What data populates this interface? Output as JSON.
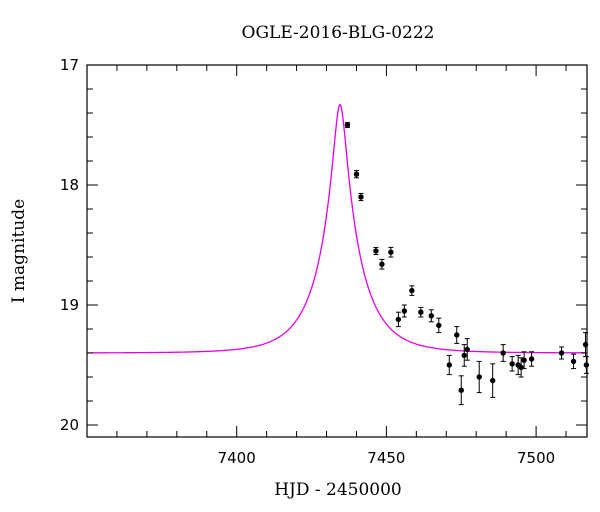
{
  "chart_data": {
    "type": "scatter",
    "title": "OGLE-2016-BLG-0222",
    "xlabel": "HJD - 2450000",
    "ylabel": "I magnitude",
    "xlim": [
      7350,
      7517
    ],
    "ylim": [
      17,
      20.1
    ],
    "y_inverted": true,
    "grid": false,
    "x_ticks": [
      {
        "value": 7400,
        "label": "7400"
      },
      {
        "value": 7450,
        "label": "7450"
      },
      {
        "value": 7500,
        "label": "7500"
      }
    ],
    "y_ticks": [
      {
        "value": 17,
        "label": "17"
      },
      {
        "value": 18,
        "label": "18"
      },
      {
        "value": 19,
        "label": "19"
      },
      {
        "value": 20,
        "label": "20"
      }
    ],
    "model": {
      "color": "#e600e6",
      "baseline_mag": 19.4,
      "peak_mag": 17.33,
      "peak_time": 7434.5,
      "tE": 13.5
    },
    "points": [
      {
        "x": 7437.0,
        "y": 17.5,
        "err": 0.02
      },
      {
        "x": 7440.0,
        "y": 17.91,
        "err": 0.03
      },
      {
        "x": 7441.5,
        "y": 18.1,
        "err": 0.03
      },
      {
        "x": 7446.5,
        "y": 18.55,
        "err": 0.03
      },
      {
        "x": 7448.5,
        "y": 18.66,
        "err": 0.04
      },
      {
        "x": 7451.5,
        "y": 18.56,
        "err": 0.04
      },
      {
        "x": 7454.0,
        "y": 19.12,
        "err": 0.06
      },
      {
        "x": 7456.0,
        "y": 19.05,
        "err": 0.05
      },
      {
        "x": 7458.5,
        "y": 18.88,
        "err": 0.04
      },
      {
        "x": 7461.5,
        "y": 19.06,
        "err": 0.04
      },
      {
        "x": 7465.0,
        "y": 19.09,
        "err": 0.05
      },
      {
        "x": 7467.5,
        "y": 19.17,
        "err": 0.06
      },
      {
        "x": 7471.0,
        "y": 19.5,
        "err": 0.08
      },
      {
        "x": 7473.5,
        "y": 19.25,
        "err": 0.07
      },
      {
        "x": 7475.0,
        "y": 19.71,
        "err": 0.12
      },
      {
        "x": 7476.0,
        "y": 19.42,
        "err": 0.09
      },
      {
        "x": 7477.0,
        "y": 19.37,
        "err": 0.09
      },
      {
        "x": 7481.0,
        "y": 19.6,
        "err": 0.13
      },
      {
        "x": 7485.5,
        "y": 19.63,
        "err": 0.14
      },
      {
        "x": 7489.0,
        "y": 19.4,
        "err": 0.07
      },
      {
        "x": 7492.0,
        "y": 19.49,
        "err": 0.06
      },
      {
        "x": 7494.0,
        "y": 19.5,
        "err": 0.08
      },
      {
        "x": 7495.0,
        "y": 19.52,
        "err": 0.08
      },
      {
        "x": 7496.0,
        "y": 19.46,
        "err": 0.07
      },
      {
        "x": 7498.5,
        "y": 19.45,
        "err": 0.06
      },
      {
        "x": 7508.5,
        "y": 19.4,
        "err": 0.05
      },
      {
        "x": 7512.5,
        "y": 19.47,
        "err": 0.06
      },
      {
        "x": 7516.5,
        "y": 19.33,
        "err": 0.1
      },
      {
        "x": 7516.8,
        "y": 19.5,
        "err": 0.07
      }
    ]
  }
}
